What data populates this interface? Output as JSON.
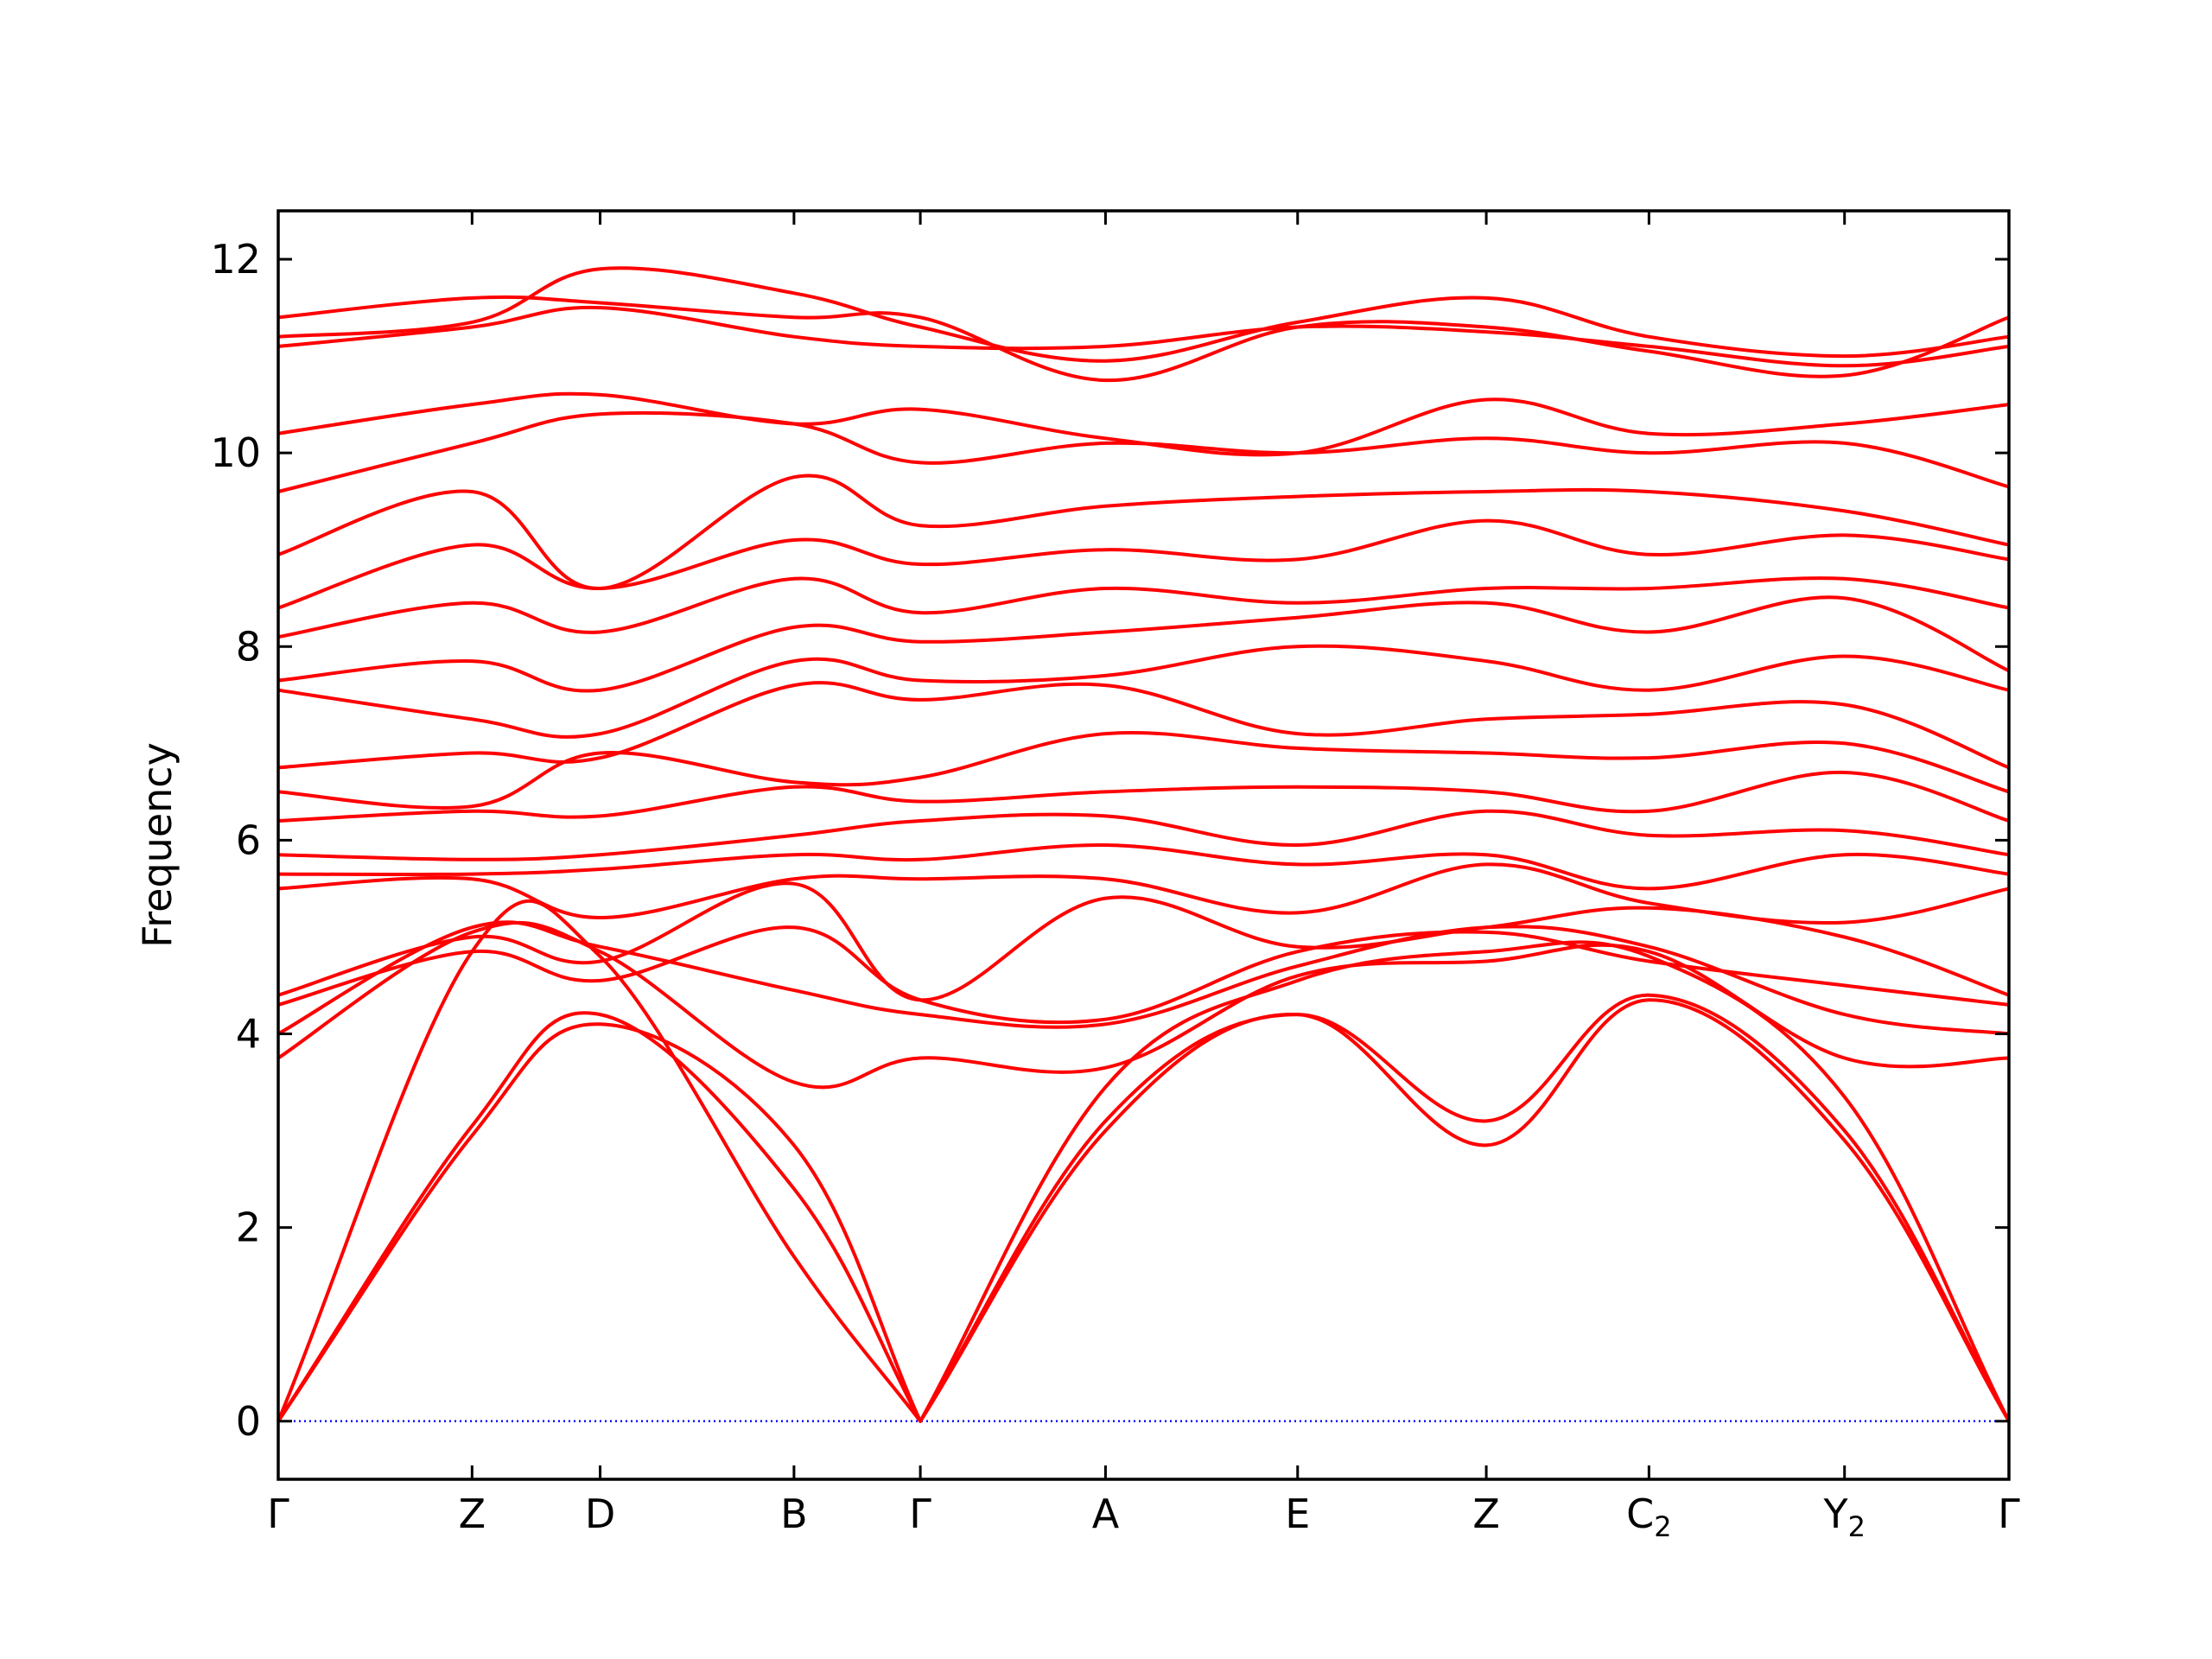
{
  "chart_data": {
    "type": "line",
    "title": "",
    "xlabel": "",
    "ylabel": "Frequency",
    "ylim": [
      -0.6,
      12.5
    ],
    "yticks": [
      0,
      2,
      4,
      6,
      8,
      10,
      12
    ],
    "ytick_labels": [
      "0",
      "2",
      "4",
      "6",
      "8",
      "10",
      "12"
    ],
    "high_symmetry_points": [
      {
        "label": "Γ",
        "sub": "",
        "x": 0.0
      },
      {
        "label": "Z",
        "sub": "",
        "x": 0.112
      },
      {
        "label": "D",
        "sub": "",
        "x": 0.186
      },
      {
        "label": "B",
        "sub": "",
        "x": 0.298
      },
      {
        "label": "Γ",
        "sub": "",
        "x": 0.371
      },
      {
        "label": "A",
        "sub": "",
        "x": 0.478
      },
      {
        "label": "E",
        "sub": "",
        "x": 0.589
      },
      {
        "label": "Z",
        "sub": "",
        "x": 0.698
      },
      {
        "label": "C",
        "sub": "2",
        "x": 0.792
      },
      {
        "label": "Y",
        "sub": "2",
        "x": 0.905
      },
      {
        "label": "Γ",
        "sub": "",
        "x": 1.0
      }
    ],
    "zero_line": {
      "y": 0,
      "color": "#0000ff",
      "style": "dotted"
    },
    "band_color": "#ff0000",
    "grid": false,
    "legend": "none",
    "series": [
      {
        "values": [
          0.0,
          2.95,
          4.1,
          2.85,
          0.0,
          3.0,
          4.2,
          2.85,
          4.35,
          2.9,
          0.0
        ]
      },
      {
        "values": [
          0.0,
          3.05,
          4.2,
          2.4,
          0.0,
          3.1,
          4.2,
          3.1,
          4.4,
          3.0,
          0.0
        ]
      },
      {
        "values": [
          0.0,
          4.85,
          4.8,
          1.7,
          0.0,
          3.45,
          4.55,
          4.85,
          4.8,
          3.35,
          0.0
        ]
      },
      {
        "values": [
          3.75,
          5.05,
          4.85,
          3.5,
          3.75,
          3.65,
          4.6,
          4.75,
          4.85,
          3.75,
          3.75
        ]
      },
      {
        "values": [
          4.0,
          5.1,
          4.9,
          4.45,
          4.2,
          4.1,
          4.7,
          5.1,
          4.9,
          4.2,
          4.0
        ]
      },
      {
        "values": [
          4.3,
          4.85,
          4.55,
          5.1,
          4.35,
          4.15,
          4.85,
          5.05,
          4.75,
          4.5,
          4.3
        ]
      },
      {
        "values": [
          4.4,
          5.0,
          4.75,
          5.55,
          4.35,
          5.4,
          4.9,
          5.1,
          5.3,
          5.0,
          4.4
        ]
      },
      {
        "values": [
          5.5,
          5.6,
          5.2,
          5.6,
          5.6,
          5.6,
          5.25,
          5.75,
          5.35,
          5.15,
          5.5
        ]
      },
      {
        "values": [
          5.65,
          5.65,
          5.7,
          5.85,
          5.8,
          5.95,
          5.75,
          5.85,
          5.5,
          5.85,
          5.65
        ]
      },
      {
        "values": [
          5.85,
          5.8,
          5.85,
          6.05,
          6.2,
          6.25,
          5.95,
          6.3,
          6.05,
          6.1,
          5.85
        ]
      },
      {
        "values": [
          6.2,
          6.3,
          6.25,
          6.55,
          6.4,
          6.5,
          6.55,
          6.5,
          6.3,
          6.7,
          6.2
        ]
      },
      {
        "values": [
          6.5,
          6.35,
          6.9,
          6.6,
          6.65,
          7.1,
          6.95,
          6.9,
          6.85,
          7.0,
          6.5
        ]
      },
      {
        "values": [
          6.75,
          6.9,
          6.85,
          7.6,
          7.45,
          7.6,
          7.1,
          7.25,
          7.3,
          7.4,
          6.75
        ]
      },
      {
        "values": [
          7.55,
          7.25,
          7.1,
          7.85,
          7.65,
          7.7,
          8.0,
          7.85,
          7.55,
          7.9,
          7.55
        ]
      },
      {
        "values": [
          7.65,
          7.85,
          7.55,
          8.2,
          8.05,
          8.15,
          8.3,
          8.45,
          8.15,
          8.5,
          7.75
        ]
      },
      {
        "values": [
          8.1,
          8.45,
          8.15,
          8.7,
          8.35,
          8.6,
          8.45,
          8.6,
          8.6,
          8.7,
          8.4
        ]
      },
      {
        "values": [
          8.4,
          9.05,
          8.6,
          9.1,
          8.85,
          9.0,
          8.9,
          9.3,
          8.95,
          9.15,
          8.9
        ]
      },
      {
        "values": [
          8.95,
          9.6,
          8.6,
          9.75,
          9.25,
          9.45,
          9.55,
          9.6,
          9.6,
          9.4,
          9.05
        ]
      },
      {
        "values": [
          9.6,
          10.1,
          10.4,
          10.3,
          9.9,
          10.1,
          10.0,
          10.15,
          10.0,
          10.1,
          9.65
        ]
      },
      {
        "values": [
          10.2,
          10.5,
          10.6,
          10.3,
          10.45,
          10.15,
          10.0,
          10.55,
          10.2,
          10.3,
          10.5
        ]
      },
      {
        "values": [
          11.1,
          11.3,
          11.5,
          11.2,
          11.1,
          11.1,
          11.3,
          11.25,
          11.1,
          10.9,
          11.1
        ]
      },
      {
        "values": [
          11.2,
          11.35,
          11.9,
          11.65,
          11.3,
          10.95,
          11.35,
          11.6,
          11.2,
          11.0,
          11.2
        ]
      },
      {
        "values": [
          11.4,
          11.6,
          11.55,
          11.4,
          11.4,
          10.75,
          11.3,
          11.3,
          11.05,
          10.8,
          11.4
        ]
      }
    ]
  }
}
